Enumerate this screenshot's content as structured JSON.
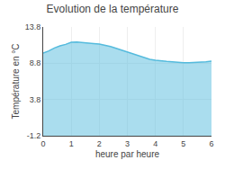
{
  "chart_data": {
    "type": "area",
    "title": "Evolution de la température",
    "xlabel": "heure par heure",
    "ylabel": "Température en °C",
    "x": [
      0,
      0.2,
      0.4,
      0.6,
      0.8,
      1.0,
      1.2,
      1.4,
      1.6,
      1.8,
      2.0,
      2.2,
      2.4,
      2.6,
      2.8,
      3.0,
      3.2,
      3.4,
      3.6,
      3.8,
      4.0,
      4.2,
      4.4,
      4.6,
      4.8,
      5.0,
      5.2,
      5.4,
      5.6,
      5.8,
      6.0
    ],
    "values": [
      10.2,
      10.5,
      10.9,
      11.2,
      11.4,
      11.7,
      11.72,
      11.68,
      11.6,
      11.52,
      11.45,
      11.3,
      11.1,
      10.85,
      10.6,
      10.35,
      10.1,
      9.85,
      9.6,
      9.35,
      9.2,
      9.1,
      9.05,
      9.0,
      8.9,
      8.88,
      8.87,
      8.9,
      8.95,
      9.0,
      9.1
    ],
    "color": "#55bbdd",
    "xlim": [
      0,
      6
    ],
    "ylim": [
      -1.2,
      13.8
    ],
    "xticks": [
      0,
      1,
      2,
      3,
      4,
      5,
      6
    ],
    "yticks": [
      -1.2,
      3.8,
      8.8,
      13.8
    ],
    "grid": true
  }
}
